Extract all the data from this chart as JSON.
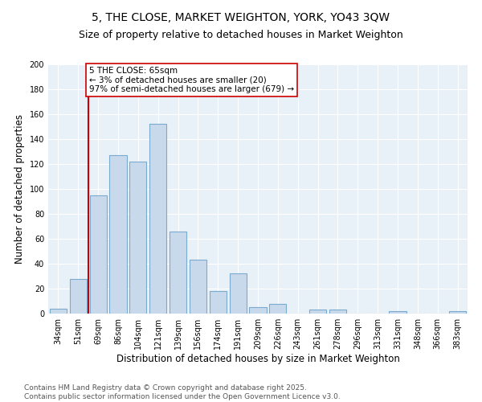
{
  "title": "5, THE CLOSE, MARKET WEIGHTON, YORK, YO43 3QW",
  "subtitle": "Size of property relative to detached houses in Market Weighton",
  "xlabel": "Distribution of detached houses by size in Market Weighton",
  "ylabel": "Number of detached properties",
  "bar_color": "#c9d9ec",
  "bar_edge_color": "#7aaace",
  "background_color": "#e8f0f8",
  "categories": [
    "34sqm",
    "51sqm",
    "69sqm",
    "86sqm",
    "104sqm",
    "121sqm",
    "139sqm",
    "156sqm",
    "174sqm",
    "191sqm",
    "209sqm",
    "226sqm",
    "243sqm",
    "261sqm",
    "278sqm",
    "296sqm",
    "313sqm",
    "331sqm",
    "348sqm",
    "366sqm",
    "383sqm"
  ],
  "values": [
    4,
    28,
    95,
    127,
    122,
    152,
    66,
    43,
    18,
    32,
    5,
    8,
    0,
    3,
    3,
    0,
    0,
    2,
    0,
    0,
    2
  ],
  "vline_color": "#cc0000",
  "annotation_text": "5 THE CLOSE: 65sqm\n← 3% of detached houses are smaller (20)\n97% of semi-detached houses are larger (679) →",
  "ylim": [
    0,
    200
  ],
  "yticks": [
    0,
    20,
    40,
    60,
    80,
    100,
    120,
    140,
    160,
    180,
    200
  ],
  "footer_text": "Contains HM Land Registry data © Crown copyright and database right 2025.\nContains public sector information licensed under the Open Government Licence v3.0.",
  "title_fontsize": 10,
  "subtitle_fontsize": 9,
  "xlabel_fontsize": 8.5,
  "ylabel_fontsize": 8.5,
  "tick_fontsize": 7,
  "annotation_fontsize": 7.5,
  "footer_fontsize": 6.5
}
